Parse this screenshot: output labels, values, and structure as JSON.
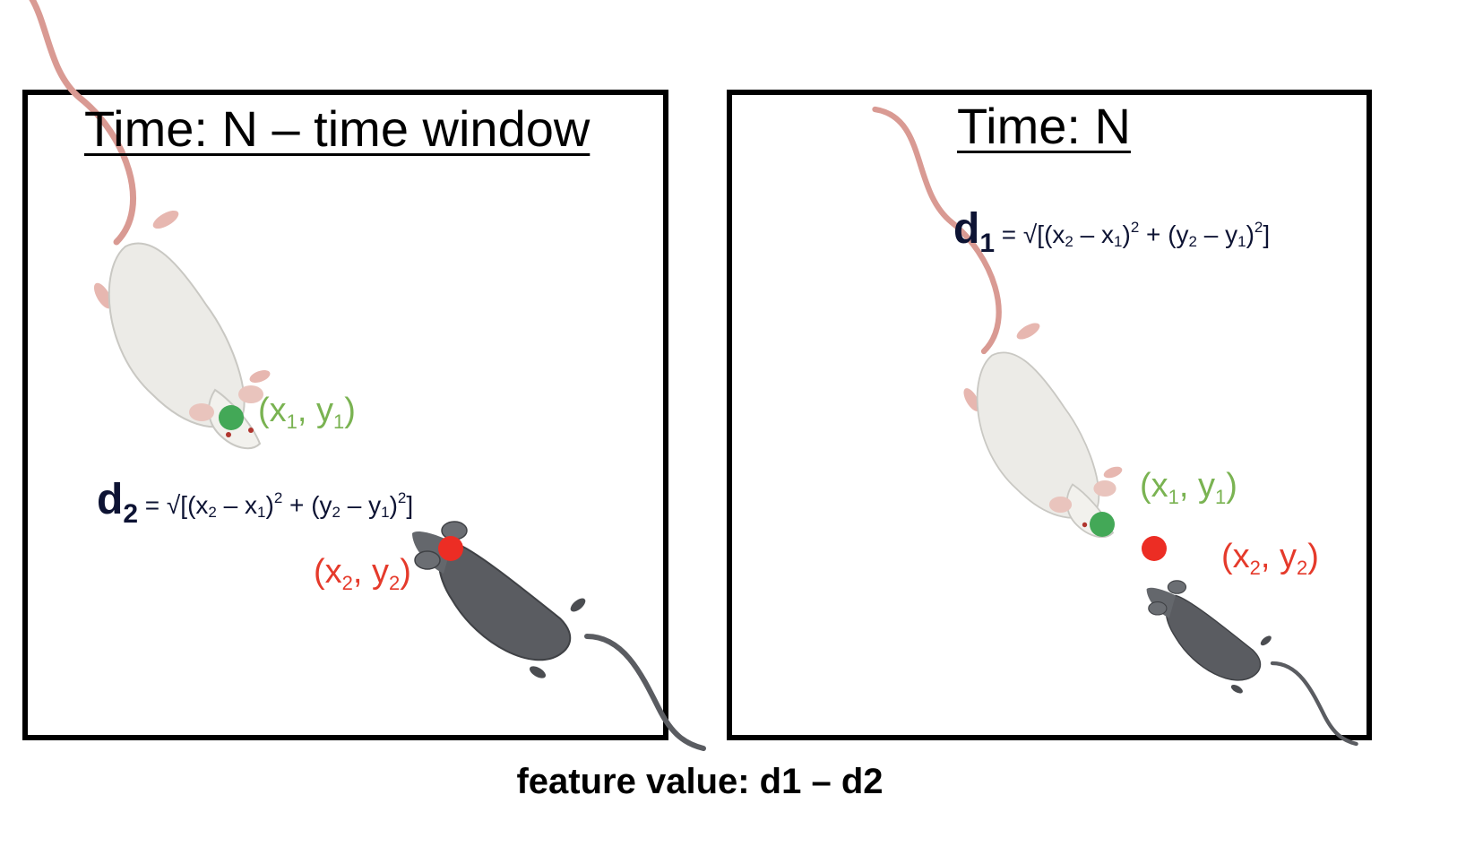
{
  "panels": {
    "left": {
      "title": "Time: N – time window",
      "formula": {
        "symbol": "d",
        "index": "2",
        "rhs": {
          "eq": " = √[(x",
          "s1": "2",
          "m1": " – x",
          "s2": "1",
          "p1": ")",
          "e1": "2",
          "plus": " + (y",
          "s3": "2",
          "m2": " – y",
          "s4": "1",
          "p2": ")",
          "e2": "2",
          "close": "]"
        }
      },
      "point1": {
        "open": "(x",
        "sx": "1",
        "mid": ", y",
        "sy": "1",
        "close": ")"
      },
      "point2": {
        "open": "(x",
        "sx": "2",
        "mid": ", y",
        "sy": "2",
        "close": ")"
      }
    },
    "right": {
      "title": "Time: N",
      "formula": {
        "symbol": "d",
        "index": "1",
        "rhs": {
          "eq": " = √[(x",
          "s1": "2",
          "m1": " – x",
          "s2": "1",
          "p1": ")",
          "e1": "2",
          "plus": " + (y",
          "s3": "2",
          "m2": " – y",
          "s4": "1",
          "p2": ")",
          "e2": "2",
          "close": "]"
        }
      },
      "point1": {
        "open": "(x",
        "sx": "1",
        "mid": ", y",
        "sy": "1",
        "close": ")"
      },
      "point2": {
        "open": "(x",
        "sx": "2",
        "mid": ", y",
        "sy": "2",
        "close": ")"
      }
    }
  },
  "footer": "feature value: d1 – d2",
  "colors": {
    "point1_label": "#7ab352",
    "point2_label": "#e53a2b",
    "point1_dot": "#43a857",
    "point2_dot": "#ec2d24",
    "formula_text": "#0d1333",
    "white_mouse_body": "#ecebe7",
    "white_mouse_tail": "#d99a93",
    "black_mouse_body": "#5a5c61"
  },
  "icons": {
    "white_mouse": "white-mouse-icon",
    "black_mouse": "black-mouse-icon"
  }
}
